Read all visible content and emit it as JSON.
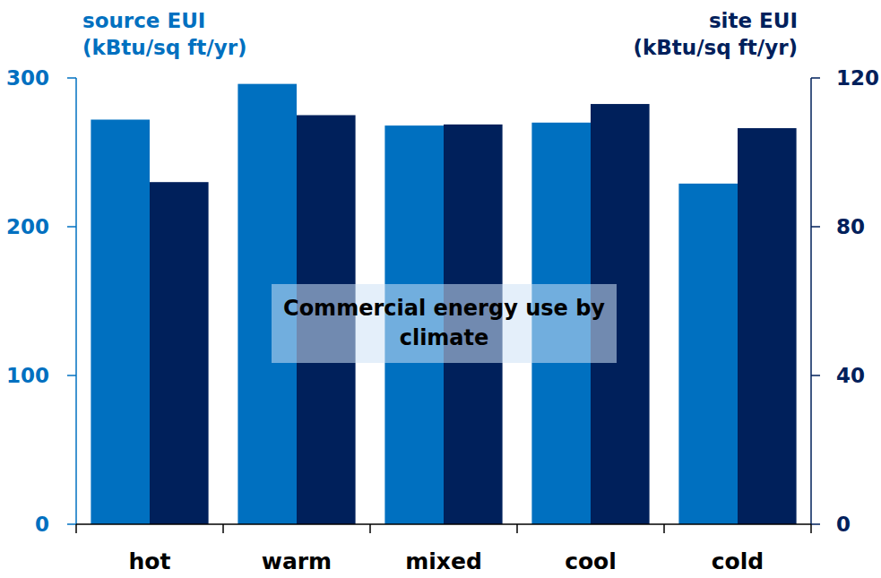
{
  "chart_data": {
    "type": "bar",
    "title": "Commercial energy use by climate",
    "categories": [
      "hot",
      "warm",
      "mixed",
      "cool",
      "cold"
    ],
    "series": [
      {
        "name": "source EUI (kBtu/sq ft/yr)",
        "color": "#0070c0",
        "values": [
          272,
          296,
          268,
          270,
          229
        ]
      },
      {
        "name": "site EUI (kBtu/sq ft/yr)",
        "color": "#00205b",
        "values": [
          92,
          110,
          107.5,
          113,
          106.5
        ],
        "axis": "y2"
      }
    ],
    "ylim": [
      0,
      300
    ],
    "yticks": [
      0,
      100,
      200,
      300
    ],
    "y2lim": [
      0,
      120
    ],
    "y2ticks": [
      0,
      40,
      80,
      120
    ],
    "grid": false
  }
}
